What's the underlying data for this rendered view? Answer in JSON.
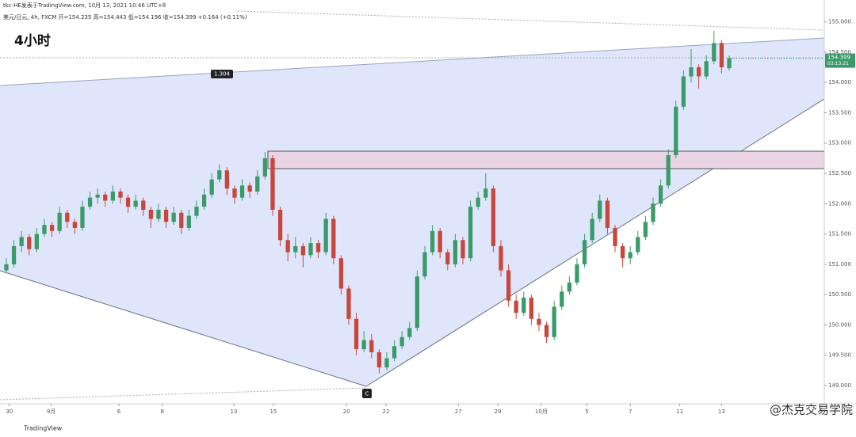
{
  "header": {
    "author_line": "tkc-HE发表于TradingView.com, 10月 13, 2021 10:46 UTC+8",
    "symbol_line": "美元/日元, 4h, FXCM  开=154.235 高=154.443 低=154.196 收=154.399 +0.164 (+0.11%)",
    "timeframe": "4小时"
  },
  "chart_data": {
    "type": "candlestick",
    "up_color": "#3a9a6a",
    "down_color": "#c8463c",
    "xlim": [
      -0.83,
      107.5
    ],
    "ylim": [
      148.7,
      155.36
    ],
    "xticks": [
      {
        "value": 0.4,
        "label": "30"
      },
      {
        "value": 5.9,
        "label": "9月"
      },
      {
        "value": 14.8,
        "label": "6"
      },
      {
        "value": 20.5,
        "label": "8"
      },
      {
        "value": 29.9,
        "label": "13"
      },
      {
        "value": 35.1,
        "label": "15"
      },
      {
        "value": 44.7,
        "label": "20"
      },
      {
        "value": 49.9,
        "label": "22"
      },
      {
        "value": 59.4,
        "label": "27"
      },
      {
        "value": 64.6,
        "label": "29"
      },
      {
        "value": 70.3,
        "label": "10月"
      },
      {
        "value": 76.3,
        "label": "5"
      },
      {
        "value": 82,
        "label": "7"
      },
      {
        "value": 88.5,
        "label": "11"
      },
      {
        "value": 94,
        "label": "13"
      }
    ],
    "yticks": [
      {
        "value": 149,
        "label": "149.000"
      },
      {
        "value": 149.5,
        "label": "149.500"
      },
      {
        "value": 150,
        "label": "150.000"
      },
      {
        "value": 150.5,
        "label": "150.500"
      },
      {
        "value": 151,
        "label": "151.000"
      },
      {
        "value": 151.5,
        "label": "151.500"
      },
      {
        "value": 152,
        "label": "152.000"
      },
      {
        "value": 152.5,
        "label": "152.500"
      },
      {
        "value": 153,
        "label": "153.000"
      },
      {
        "value": 153.5,
        "label": "153.500"
      },
      {
        "value": 154,
        "label": "154.000"
      },
      {
        "value": 154.5,
        "label": "154.500"
      },
      {
        "value": 155,
        "label": "155.000"
      }
    ],
    "ohlc": [
      [
        150.9,
        151.1,
        150.85,
        151.0
      ],
      [
        151.0,
        151.4,
        150.95,
        151.3
      ],
      [
        151.3,
        151.55,
        151.2,
        151.45
      ],
      [
        151.45,
        151.5,
        151.15,
        151.25
      ],
      [
        151.25,
        151.6,
        151.2,
        151.5
      ],
      [
        151.5,
        151.75,
        151.45,
        151.65
      ],
      [
        151.65,
        151.7,
        151.45,
        151.55
      ],
      [
        151.55,
        151.95,
        151.5,
        151.85
      ],
      [
        151.85,
        151.9,
        151.6,
        151.7
      ],
      [
        151.7,
        151.75,
        151.5,
        151.6
      ],
      [
        151.6,
        152.05,
        151.55,
        151.95
      ],
      [
        151.95,
        152.2,
        151.9,
        152.1
      ],
      [
        152.1,
        152.25,
        152.0,
        152.15
      ],
      [
        152.15,
        152.2,
        151.95,
        152.05
      ],
      [
        152.05,
        152.3,
        152.0,
        152.2
      ],
      [
        152.2,
        152.25,
        152.0,
        152.1
      ],
      [
        152.1,
        152.15,
        151.85,
        151.95
      ],
      [
        151.95,
        152.15,
        151.9,
        152.05
      ],
      [
        152.05,
        152.1,
        151.8,
        151.9
      ],
      [
        151.9,
        151.95,
        151.6,
        151.75
      ],
      [
        151.75,
        152.0,
        151.7,
        151.9
      ],
      [
        151.9,
        151.95,
        151.6,
        151.7
      ],
      [
        151.7,
        151.95,
        151.65,
        151.85
      ],
      [
        151.85,
        151.9,
        151.5,
        151.6
      ],
      [
        151.6,
        151.9,
        151.55,
        151.8
      ],
      [
        151.8,
        152.05,
        151.75,
        151.95
      ],
      [
        151.95,
        152.25,
        151.9,
        152.15
      ],
      [
        152.15,
        152.5,
        152.1,
        152.4
      ],
      [
        152.4,
        152.65,
        152.35,
        152.55
      ],
      [
        152.55,
        152.6,
        152.15,
        152.25
      ],
      [
        152.25,
        152.3,
        152.0,
        152.1
      ],
      [
        152.1,
        152.4,
        152.05,
        152.3
      ],
      [
        152.3,
        152.35,
        152.1,
        152.2
      ],
      [
        152.2,
        152.55,
        152.15,
        152.45
      ],
      [
        152.45,
        152.85,
        152.4,
        152.75
      ],
      [
        152.75,
        152.8,
        151.8,
        151.9
      ],
      [
        151.9,
        151.95,
        151.3,
        151.4
      ],
      [
        151.4,
        151.5,
        151.05,
        151.2
      ],
      [
        151.2,
        151.45,
        151.1,
        151.3
      ],
      [
        151.3,
        151.35,
        150.95,
        151.15
      ],
      [
        151.15,
        151.45,
        151.1,
        151.35
      ],
      [
        151.35,
        151.4,
        151.1,
        151.2
      ],
      [
        151.2,
        151.85,
        151.15,
        151.75
      ],
      [
        151.75,
        151.8,
        151.0,
        151.1
      ],
      [
        151.1,
        151.15,
        150.5,
        150.6
      ],
      [
        150.6,
        150.65,
        150.0,
        150.1
      ],
      [
        150.1,
        150.2,
        149.5,
        149.6
      ],
      [
        149.6,
        149.9,
        149.55,
        149.75
      ],
      [
        149.75,
        149.85,
        149.45,
        149.55
      ],
      [
        149.55,
        149.6,
        149.2,
        149.3
      ],
      [
        149.3,
        149.55,
        149.25,
        149.45
      ],
      [
        149.45,
        149.75,
        149.4,
        149.65
      ],
      [
        149.65,
        149.9,
        149.6,
        149.8
      ],
      [
        149.8,
        150.05,
        149.75,
        149.95
      ],
      [
        149.95,
        150.9,
        149.9,
        150.8
      ],
      [
        150.8,
        151.3,
        150.75,
        151.2
      ],
      [
        151.2,
        151.65,
        151.15,
        151.55
      ],
      [
        151.55,
        151.6,
        151.1,
        151.2
      ],
      [
        151.2,
        151.25,
        150.9,
        151.0
      ],
      [
        151.0,
        151.5,
        150.95,
        151.4
      ],
      [
        151.4,
        151.45,
        151.0,
        151.1
      ],
      [
        151.1,
        152.05,
        151.05,
        151.95
      ],
      [
        151.95,
        152.2,
        151.9,
        152.1
      ],
      [
        152.1,
        152.5,
        152.05,
        152.25
      ],
      [
        152.25,
        152.3,
        151.2,
        151.3
      ],
      [
        151.3,
        151.4,
        150.8,
        150.9
      ],
      [
        150.9,
        151.0,
        150.3,
        150.4
      ],
      [
        150.4,
        150.5,
        150.1,
        150.2
      ],
      [
        150.2,
        150.55,
        150.15,
        150.45
      ],
      [
        150.45,
        150.5,
        150.0,
        150.1
      ],
      [
        150.1,
        150.2,
        149.9,
        150.0
      ],
      [
        150.0,
        150.05,
        149.7,
        149.8
      ],
      [
        149.8,
        150.4,
        149.75,
        150.3
      ],
      [
        150.3,
        150.65,
        150.25,
        150.55
      ],
      [
        150.55,
        150.8,
        150.5,
        150.7
      ],
      [
        150.7,
        151.1,
        150.65,
        151.0
      ],
      [
        151.0,
        151.5,
        150.95,
        151.4
      ],
      [
        151.4,
        151.85,
        151.35,
        151.75
      ],
      [
        151.75,
        152.15,
        151.7,
        152.05
      ],
      [
        152.05,
        152.1,
        151.5,
        151.6
      ],
      [
        151.6,
        151.65,
        151.2,
        151.3
      ],
      [
        151.3,
        151.35,
        150.95,
        151.1
      ],
      [
        151.1,
        151.3,
        151.0,
        151.2
      ],
      [
        151.2,
        151.55,
        151.15,
        151.45
      ],
      [
        151.45,
        151.8,
        151.4,
        151.7
      ],
      [
        151.7,
        152.1,
        151.65,
        152.0
      ],
      [
        152.0,
        152.4,
        151.95,
        152.3
      ],
      [
        152.3,
        152.9,
        152.25,
        152.8
      ],
      [
        152.8,
        153.7,
        152.75,
        153.6
      ],
      [
        153.6,
        154.2,
        153.55,
        154.1
      ],
      [
        154.1,
        154.55,
        154.0,
        154.25
      ],
      [
        154.25,
        154.3,
        153.9,
        154.1
      ],
      [
        154.1,
        154.45,
        154.05,
        154.35
      ],
      [
        154.35,
        154.85,
        154.3,
        154.65
      ],
      [
        154.65,
        154.7,
        154.15,
        154.25
      ],
      [
        154.235,
        154.443,
        154.196,
        154.399
      ]
    ],
    "last_price_label": "154.399",
    "countdown": "03:13:21",
    "annotations": [
      "1.304",
      "C"
    ]
  },
  "footer": {
    "logo": "TradingView",
    "watermark": "@杰克交易学院"
  }
}
